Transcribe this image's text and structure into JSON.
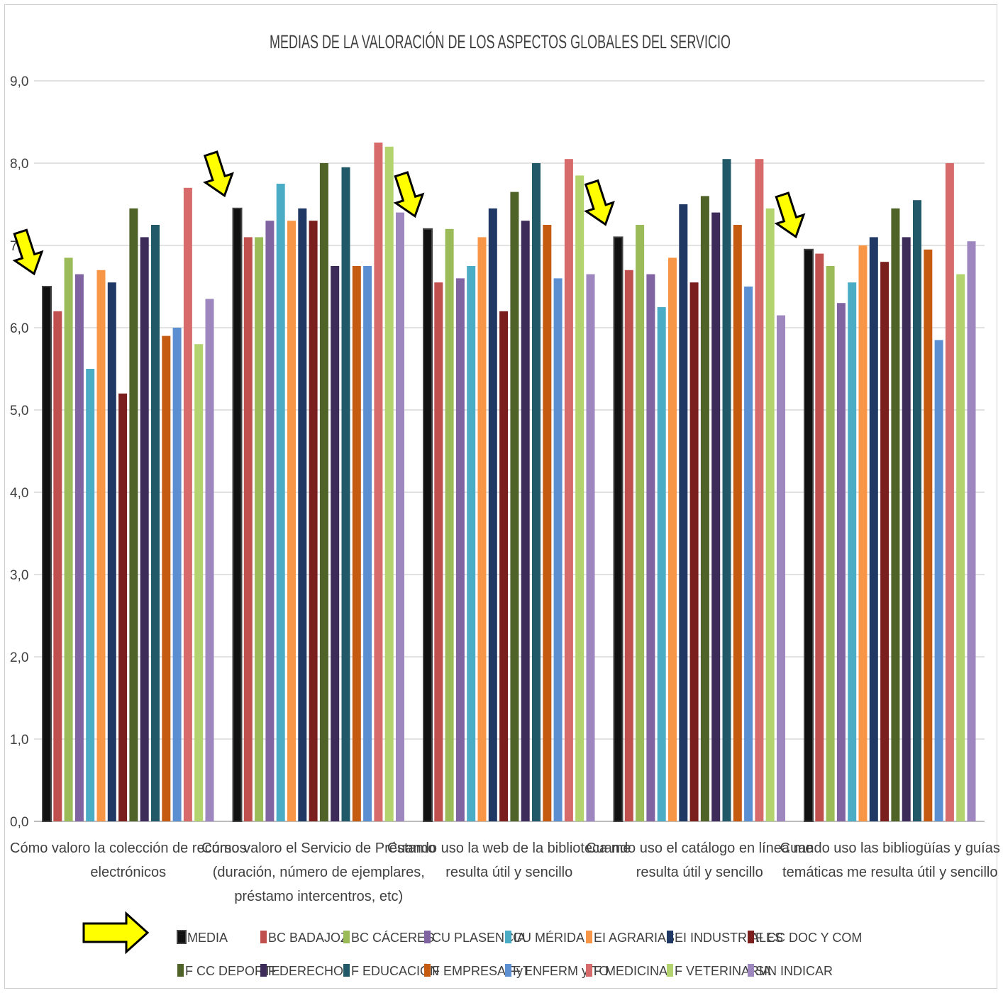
{
  "chart_data": {
    "type": "bar",
    "title": "MEDIAS DE LA VALORACIÓN DE LOS ASPECTOS GLOBALES DEL SERVICIO",
    "xlabel": "",
    "ylabel": "",
    "ylim": [
      0,
      9
    ],
    "yticks": [
      "0,0",
      "1,0",
      "2,0",
      "3,0",
      "4,0",
      "5,0",
      "6,0",
      "7,0",
      "8,0",
      "9,0"
    ],
    "grid": true,
    "legend_position": "bottom",
    "categories": [
      [
        "Cómo valoro la colección de recursos",
        "electrónicos"
      ],
      [
        "Cómo valoro el Servicio de Préstamo",
        "(duración, número de ejemplares,",
        "préstamo intercentros, etc)"
      ],
      [
        "Cuando uso la web de la biblioteca me",
        "resulta útil y sencillo"
      ],
      [
        "Cuando uso el catálogo en línea me",
        "resulta útil y sencillo"
      ],
      [
        "Cuando uso las bibliogüías y guías",
        "temáticas me resulta útil y sencillo"
      ]
    ],
    "series": [
      {
        "name": "MEDIA",
        "color": "#111111",
        "values": [
          6.5,
          7.45,
          7.2,
          7.1,
          6.95
        ]
      },
      {
        "name": "BC BADAJOZ",
        "color": "#c0504d",
        "values": [
          6.2,
          7.1,
          6.55,
          6.7,
          6.9
        ]
      },
      {
        "name": "BC CÁCERES",
        "color": "#9bbb59",
        "values": [
          6.85,
          7.1,
          7.2,
          7.25,
          6.75
        ]
      },
      {
        "name": "CU PLASENCIA",
        "color": "#8064a2",
        "values": [
          6.65,
          7.3,
          6.6,
          6.65,
          6.3
        ]
      },
      {
        "name": "CU MÉRIDA",
        "color": "#4bacc6",
        "values": [
          5.5,
          7.75,
          6.75,
          6.25,
          6.55
        ]
      },
      {
        "name": "EI AGRARIAS",
        "color": "#f79646",
        "values": [
          6.7,
          7.3,
          7.1,
          6.85,
          7.0
        ]
      },
      {
        "name": "EI INDUSTRIALES",
        "color": "#1f3864",
        "values": [
          6.55,
          7.45,
          7.45,
          7.5,
          7.1
        ]
      },
      {
        "name": "F CC DOC Y COM",
        "color": "#7b1e1e",
        "values": [
          5.2,
          7.3,
          6.2,
          6.55,
          6.8
        ]
      },
      {
        "name": "F CC DEPORTE",
        "color": "#4f6228",
        "values": [
          7.45,
          8.0,
          7.65,
          7.6,
          7.45
        ]
      },
      {
        "name": "F DERECHO",
        "color": "#3d2b5a",
        "values": [
          7.1,
          6.75,
          7.3,
          7.4,
          7.1
        ]
      },
      {
        "name": "F EDUCACIÓN",
        "color": "#215968",
        "values": [
          7.25,
          7.95,
          8.0,
          8.05,
          7.55
        ]
      },
      {
        "name": "F EMPRESA FyT",
        "color": "#c55a11",
        "values": [
          5.9,
          6.75,
          7.25,
          7.25,
          6.95
        ]
      },
      {
        "name": "F ENFERM y TO",
        "color": "#5b8fd1",
        "values": [
          6.0,
          6.75,
          6.6,
          6.5,
          5.85
        ]
      },
      {
        "name": "F MEDICINA",
        "color": "#d76b6b",
        "values": [
          7.7,
          8.25,
          8.05,
          8.05,
          8.0
        ]
      },
      {
        "name": "F VETERINARIA",
        "color": "#b3d36e",
        "values": [
          5.8,
          8.2,
          7.85,
          7.45,
          6.65
        ]
      },
      {
        "name": "SIN INDICAR",
        "color": "#9d87be",
        "values": [
          6.35,
          7.4,
          6.65,
          6.15,
          7.05
        ]
      }
    ]
  },
  "annotations": {
    "arrow_color": "#ffff00",
    "arrow_icon": "yellow-arrow"
  }
}
